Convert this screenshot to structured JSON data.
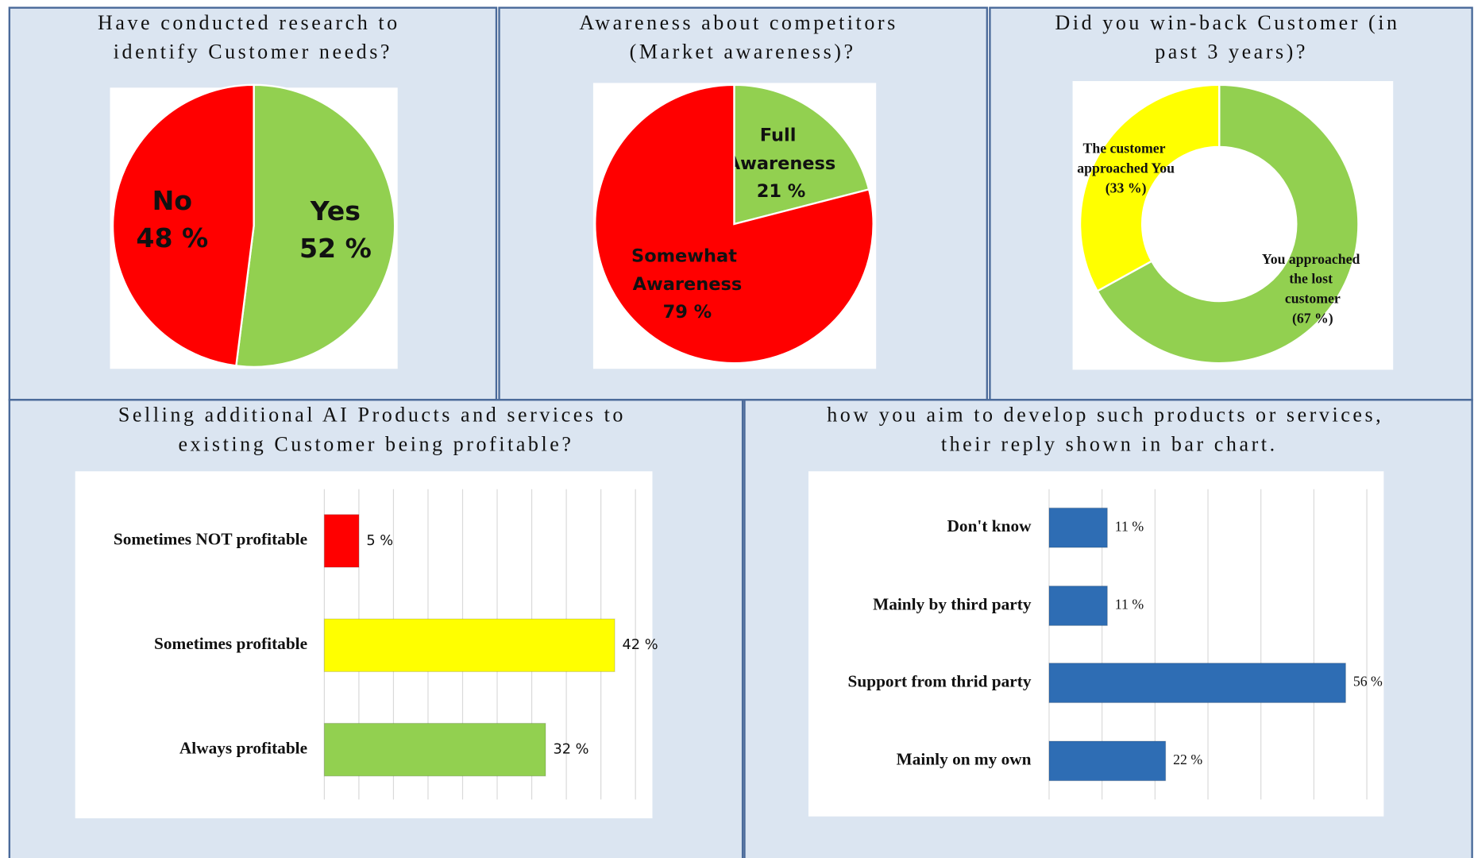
{
  "chart_data": [
    {
      "type": "pie",
      "title": "Have conducted research to identify Customer needs?",
      "categories": [
        "Yes",
        "No"
      ],
      "values": [
        52,
        48
      ],
      "value_labels": [
        "52 %",
        "48 %"
      ],
      "colors": [
        "#92d050",
        "#ff0000"
      ]
    },
    {
      "type": "pie",
      "title": "Awareness about competitors (Market awareness)?",
      "categories": [
        "Full Awareness",
        "Somewhat Awareness"
      ],
      "values": [
        21,
        79
      ],
      "value_labels": [
        "21 %",
        "79 %"
      ],
      "colors": [
        "#92d050",
        "#ff0000"
      ]
    },
    {
      "type": "donut",
      "title": "Did you win-back Customer (in past 3 years)?",
      "categories": [
        "You approached the lost customer",
        "The customer approached You"
      ],
      "values": [
        67,
        33
      ],
      "value_labels": [
        "(67 %)",
        "(33 %)"
      ],
      "colors": [
        "#92d050",
        "#ffff00"
      ]
    },
    {
      "type": "hbar",
      "title": "Selling additional AI Products and services to existing Customer being profitable?",
      "categories": [
        "Sometimes NOT profitable",
        "Sometimes profitable",
        "Always profitable"
      ],
      "values": [
        5,
        42,
        32
      ],
      "value_labels": [
        "5 %",
        "42 %",
        "32 %"
      ],
      "colors": [
        "#ff0000",
        "#ffff00",
        "#92d050"
      ],
      "xlim": [
        0,
        45
      ],
      "xticks": [
        0,
        5,
        10,
        15,
        20,
        25,
        30,
        35,
        40,
        45
      ],
      "grid": true
    },
    {
      "type": "hbar",
      "title": "how you aim to develop such products or services, their reply shown in bar chart.",
      "categories": [
        "Don't know",
        "Mainly by third party",
        "Support from thrid party",
        "Mainly on my own"
      ],
      "values": [
        11,
        11,
        56,
        22
      ],
      "value_labels": [
        "11 %",
        "11 %",
        "56 %",
        "22 %"
      ],
      "color": "#2e6db4",
      "xlim": [
        0,
        60
      ],
      "xticks": [
        0,
        10,
        20,
        30,
        40,
        50,
        60
      ],
      "grid": true
    }
  ]
}
